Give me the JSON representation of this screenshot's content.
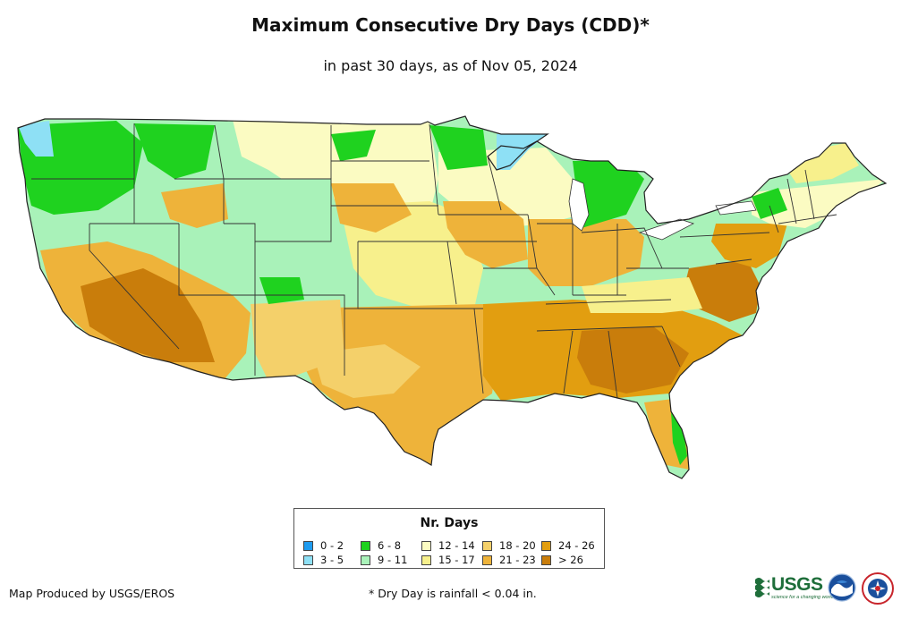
{
  "title": "Maximum Consecutive Dry Days (CDD)*",
  "subtitle": "in past 30 days, as of Nov 05, 2024",
  "legend": {
    "title": "Nr. Days",
    "items": [
      {
        "label": "0 - 2",
        "color": "#1f9cf0"
      },
      {
        "label": "3 - 5",
        "color": "#8ee0f5"
      },
      {
        "label": "6 - 8",
        "color": "#1fd21f"
      },
      {
        "label": "9 - 11",
        "color": "#a9f2b9"
      },
      {
        "label": "12 - 14",
        "color": "#fbfbc2"
      },
      {
        "label": "15 - 17",
        "color": "#f7f08c"
      },
      {
        "label": "18 - 20",
        "color": "#f4d06a"
      },
      {
        "label": "21 - 23",
        "color": "#eeb33a"
      },
      {
        "label": "24 - 26",
        "color": "#e29e10"
      },
      {
        "label": "> 26",
        "color": "#c97d0b"
      }
    ]
  },
  "credit": "Map Produced by USGS/EROS",
  "footnote": "* Dry Day is rainfall < 0.04 in.",
  "logos": {
    "usgs": "USGS",
    "usgs_tagline": "science for a changing world",
    "noaa": "NOAA",
    "nws": "NWS"
  },
  "map": {
    "region": "Contiguous United States",
    "palette": {
      "wet": "#1fd21f",
      "light": "#a9f2b9",
      "pale": "#fbfbc2",
      "yellow": "#f7f08c",
      "tan": "#f4d06a",
      "orange": "#eeb33a",
      "dark_orange": "#e29e10",
      "brown": "#c97d0b",
      "cyan": "#8ee0f5",
      "border": "#333333"
    }
  }
}
